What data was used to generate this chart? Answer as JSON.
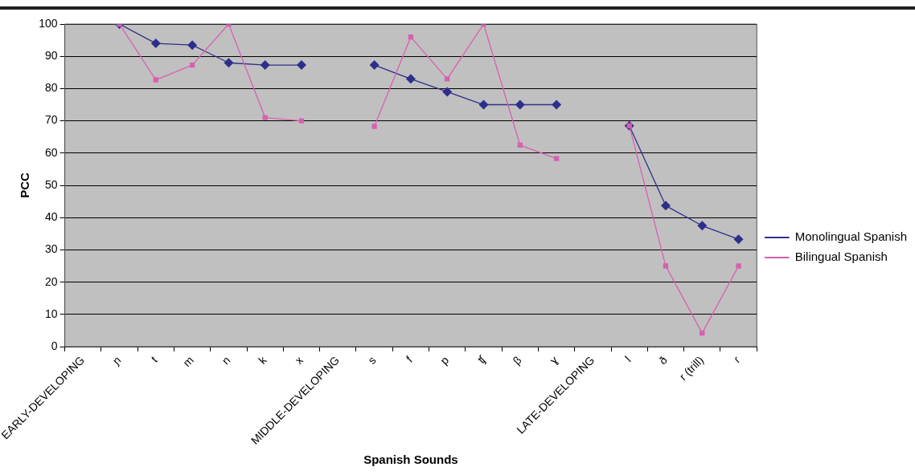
{
  "chart_data": {
    "type": "line",
    "xlabel": "Spanish Sounds",
    "ylabel": "PCC",
    "categories": [
      "EARLY-DEVELOPING",
      "ɲ",
      "t",
      "m",
      "n",
      "k",
      "x",
      "MIDDLE-DEVELOPING",
      "s",
      "f",
      "p",
      "ʧ",
      "β",
      "ɣ",
      "LATE-DEVELOPING",
      "l",
      "ð",
      "r (trill)",
      "ɾ"
    ],
    "series": [
      {
        "name": "Monolingual Spanish",
        "color": "#2e2e8c",
        "marker": "diamond",
        "values": [
          null,
          100,
          94,
          93.5,
          88,
          87.3,
          87.3,
          null,
          87.3,
          83,
          79,
          75,
          75,
          75,
          null,
          68.5,
          43.7,
          37.5,
          33.3
        ]
      },
      {
        "name": "Bilingual Spanish",
        "color": "#d860b0",
        "marker": "square",
        "values": [
          null,
          100,
          82.7,
          87.3,
          100,
          71,
          70,
          null,
          68.3,
          96,
          83,
          100,
          62.5,
          58.3,
          null,
          68.5,
          25,
          4.2,
          25
        ]
      }
    ],
    "ylim": [
      0,
      100
    ],
    "yticks": [
      0,
      10,
      20,
      30,
      40,
      50,
      60,
      70,
      80,
      90,
      100
    ],
    "grid": "y",
    "legend": "right",
    "line_style": "solid"
  }
}
